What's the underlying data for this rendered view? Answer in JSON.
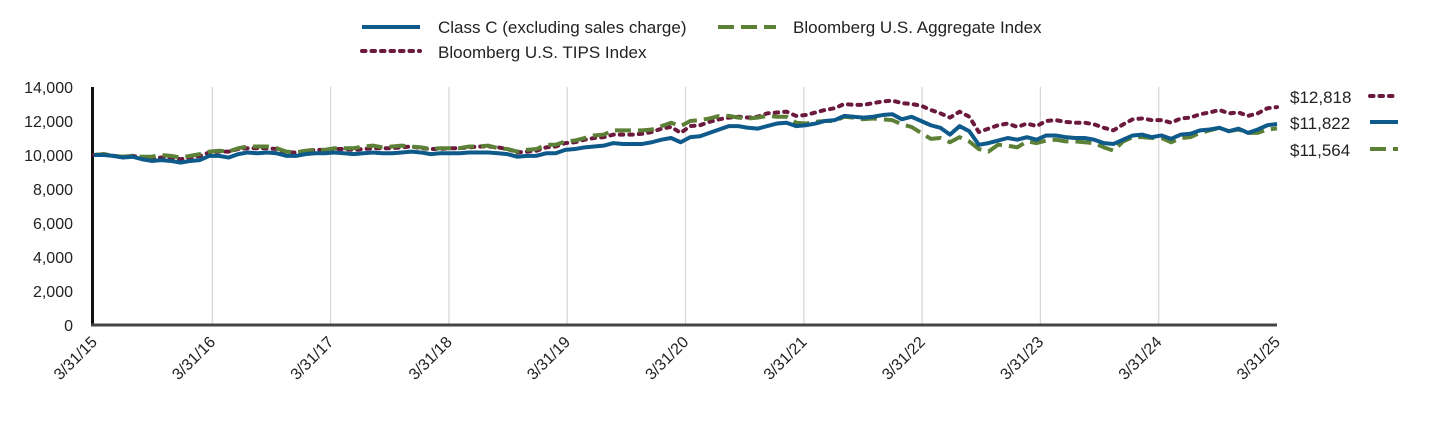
{
  "chart_data": {
    "type": "line",
    "title": "",
    "xlabel": "",
    "ylabel": "",
    "ylim": [
      0,
      14000
    ],
    "y_ticks": [
      0,
      2000,
      4000,
      6000,
      8000,
      10000,
      12000,
      14000
    ],
    "y_tick_labels": [
      "0",
      "2,000",
      "4,000",
      "6,000",
      "8,000",
      "10,000",
      "12,000",
      "14,000"
    ],
    "x_tick_labels": [
      "3/31/15",
      "3/31/16",
      "3/31/17",
      "3/31/18",
      "3/31/19",
      "3/31/20",
      "3/31/21",
      "3/31/22",
      "3/31/23",
      "3/31/24",
      "3/31/25"
    ],
    "grid": "vertical",
    "legend_position": "top-center",
    "colors": {
      "fund": "#0e5a8a",
      "agg": "#5b8036",
      "tips": "#6b1a3e",
      "grid": "#d6d6d6",
      "axis": "#111111"
    },
    "series": [
      {
        "name": "Class C (excluding sales charge)",
        "style": "solid",
        "end_label": "$11,822",
        "values": [
          10000,
          10000,
          9950,
          9850,
          9900,
          9750,
          9650,
          9700,
          9650,
          9550,
          9650,
          9700,
          9950,
          9950,
          9850,
          10050,
          10150,
          10100,
          10150,
          10100,
          9950,
          9950,
          10050,
          10100,
          10100,
          10150,
          10100,
          10050,
          10100,
          10150,
          10100,
          10100,
          10150,
          10200,
          10150,
          10050,
          10100,
          10100,
          10100,
          10150,
          10150,
          10150,
          10100,
          10050,
          9900,
          9950,
          9950,
          10100,
          10100,
          10300,
          10350,
          10450,
          10500,
          10550,
          10700,
          10650,
          10650,
          10650,
          10750,
          10900,
          11000,
          10750,
          11050,
          11100,
          11300,
          11500,
          11700,
          11700,
          11600,
          11550,
          11700,
          11850,
          11900,
          11700,
          11750,
          11850,
          12000,
          12050,
          12300,
          12250,
          12200,
          12250,
          12350,
          12400,
          12100,
          12250,
          12000,
          11750,
          11600,
          11200,
          11700,
          11400,
          10600,
          10700,
          10850,
          11000,
          10900,
          11050,
          10900,
          11150,
          11150,
          11050,
          11000,
          11000,
          10900,
          10700,
          10650,
          10900,
          11150,
          11200,
          11050,
          11150,
          10950,
          11200,
          11250,
          11450,
          11500,
          11600,
          11400,
          11550,
          11300,
          11500,
          11750,
          11822
        ]
      },
      {
        "name": "Bloomberg U.S. Aggregate Index",
        "style": "dashed",
        "end_label": "$11,564",
        "values": [
          10000,
          10050,
          9950,
          9900,
          9950,
          9900,
          9900,
          10000,
          9950,
          9850,
          9950,
          10050,
          10200,
          10250,
          10200,
          10400,
          10500,
          10500,
          10500,
          10400,
          10200,
          10150,
          10250,
          10300,
          10300,
          10400,
          10400,
          10400,
          10500,
          10550,
          10450,
          10500,
          10550,
          10500,
          10450,
          10350,
          10400,
          10400,
          10400,
          10500,
          10500,
          10550,
          10400,
          10350,
          10200,
          10300,
          10350,
          10600,
          10600,
          10800,
          10850,
          11000,
          11150,
          11200,
          11450,
          11450,
          11450,
          11450,
          11500,
          11700,
          11900,
          11700,
          12000,
          12050,
          12150,
          12300,
          12300,
          12200,
          12150,
          12200,
          12300,
          12250,
          12250,
          11900,
          11850,
          11950,
          12000,
          12000,
          12250,
          12200,
          12100,
          12150,
          12100,
          12050,
          11800,
          11650,
          11300,
          10950,
          11000,
          10750,
          11050,
          10800,
          10350,
          10200,
          10600,
          10550,
          10450,
          10800,
          10700,
          10850,
          10900,
          10800,
          10800,
          10750,
          10700,
          10450,
          10250,
          10800,
          11050,
          11050,
          11000,
          11000,
          10750,
          11000,
          11050,
          11300,
          11450,
          11600,
          11400,
          11500,
          11300,
          11300,
          11500,
          11564
        ]
      },
      {
        "name": "Bloomberg U.S. TIPS Index",
        "style": "dotted",
        "end_label": "$12,818",
        "values": [
          10000,
          10050,
          9950,
          9900,
          9950,
          9850,
          9800,
          9850,
          9850,
          9750,
          9850,
          9950,
          10150,
          10200,
          10200,
          10350,
          10400,
          10400,
          10400,
          10350,
          10150,
          10150,
          10250,
          10300,
          10300,
          10350,
          10350,
          10300,
          10350,
          10400,
          10400,
          10400,
          10450,
          10500,
          10400,
          10350,
          10350,
          10400,
          10400,
          10450,
          10500,
          10500,
          10450,
          10350,
          10150,
          10200,
          10250,
          10450,
          10500,
          10700,
          10750,
          10900,
          11000,
          11050,
          11200,
          11200,
          11200,
          11250,
          11350,
          11550,
          11650,
          11300,
          11700,
          11750,
          11950,
          12100,
          12200,
          12250,
          12200,
          12250,
          12450,
          12500,
          12550,
          12300,
          12350,
          12500,
          12650,
          12750,
          13000,
          12950,
          12950,
          13050,
          13150,
          13200,
          13050,
          13000,
          12900,
          12650,
          12450,
          12200,
          12550,
          12250,
          11350,
          11550,
          11750,
          11850,
          11650,
          11850,
          11700,
          12000,
          12050,
          11950,
          11900,
          11900,
          11800,
          11600,
          11450,
          11800,
          12100,
          12150,
          12050,
          12050,
          11900,
          12150,
          12200,
          12400,
          12500,
          12650,
          12450,
          12500,
          12300,
          12450,
          12750,
          12818
        ]
      }
    ]
  }
}
